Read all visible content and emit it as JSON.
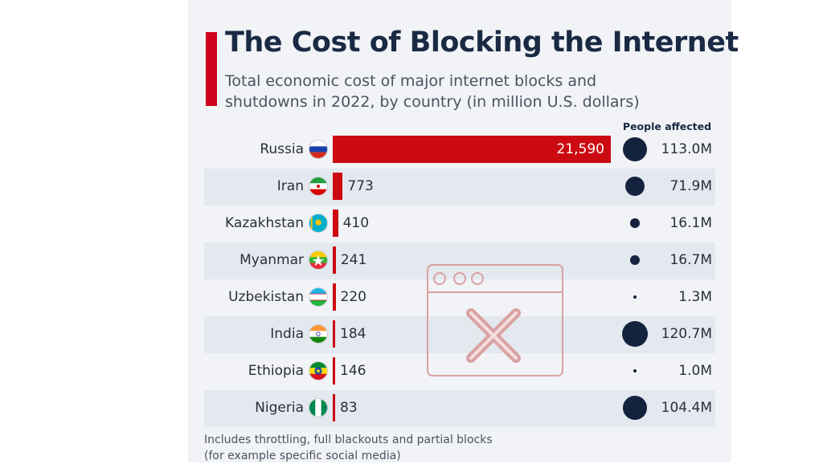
{
  "title": "The Cost of Blocking the Internet",
  "subtitle_line1": "Total economic cost of major internet blocks and",
  "subtitle_line2": "shutdowns in 2022, by country (in million U.S. dollars)",
  "people_header": "People affected",
  "footnote_line1": "Includes throttling, full blackouts and partial blocks",
  "footnote_line2": "(for example specific social media)",
  "colors": {
    "bar": "#cc0a12",
    "bubble": "#14233d",
    "accent": "#d0021b",
    "title": "#1a2a44"
  },
  "overlay_icon": "browser-window-x-icon",
  "chart_data": {
    "type": "bar",
    "orientation": "horizontal",
    "title": "The Cost of Blocking the Internet",
    "subtitle": "Total economic cost of major internet blocks and shutdowns in 2022, by country (in million U.S. dollars)",
    "categories": [
      "Russia",
      "Iran",
      "Kazakhstan",
      "Myanmar",
      "Uzbekistan",
      "India",
      "Ethiopia",
      "Nigeria"
    ],
    "values": [
      21590,
      773,
      410,
      241,
      220,
      184,
      146,
      83
    ],
    "value_labels": [
      "21,590",
      "773",
      "410",
      "241",
      "220",
      "184",
      "146",
      "83"
    ],
    "people_affected": [
      113.0,
      71.9,
      16.1,
      16.7,
      1.3,
      120.7,
      1.0,
      104.4
    ],
    "people_affected_labels": [
      "113.0M",
      "71.9M",
      "16.1M",
      "16.7M",
      "1.3M",
      "120.7M",
      "1.0M",
      "104.4M"
    ],
    "flags": [
      "russia-flag-icon",
      "iran-flag-icon",
      "kazakhstan-flag-icon",
      "myanmar-flag-icon",
      "uzbekistan-flag-icon",
      "india-flag-icon",
      "ethiopia-flag-icon",
      "nigeria-flag-icon"
    ]
  }
}
